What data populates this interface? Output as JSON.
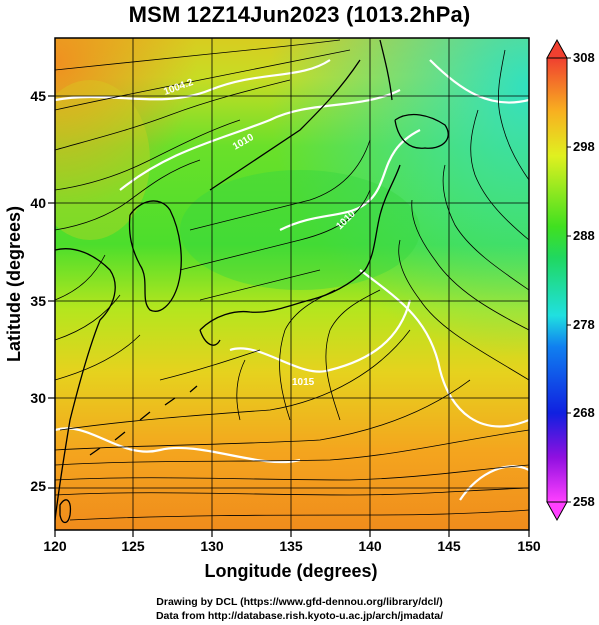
{
  "title": "MSM 12Z14Jun2023 (1013.2hPa)",
  "chart_data": {
    "type": "heatmap",
    "xlabel": "Longitude (degrees)",
    "ylabel": "Latitude  (degrees)",
    "xlim": [
      120,
      150
    ],
    "ylim": [
      22.4,
      47.6
    ],
    "xticks": [
      "120",
      "125",
      "130",
      "135",
      "140",
      "145",
      "150"
    ],
    "yticks": [
      "25",
      "30",
      "35",
      "40",
      "45"
    ],
    "colorbar": {
      "range": [
        258,
        308
      ],
      "ticks": [
        "258",
        "268",
        "278",
        "288",
        "298",
        "308"
      ]
    },
    "contour_labels": [
      "1004.2",
      "1010",
      "1010",
      "1015"
    ],
    "grid": true,
    "overlays": [
      "temperature shading",
      "white isobars",
      "black streamlines",
      "coastlines"
    ]
  },
  "credits": {
    "line1": "Drawing by DCL (https://www.gfd-dennou.org/library/dcl/)",
    "line2": "Data from http://database.rish.kyoto-u.ac.jp/arch/jmadata/"
  }
}
